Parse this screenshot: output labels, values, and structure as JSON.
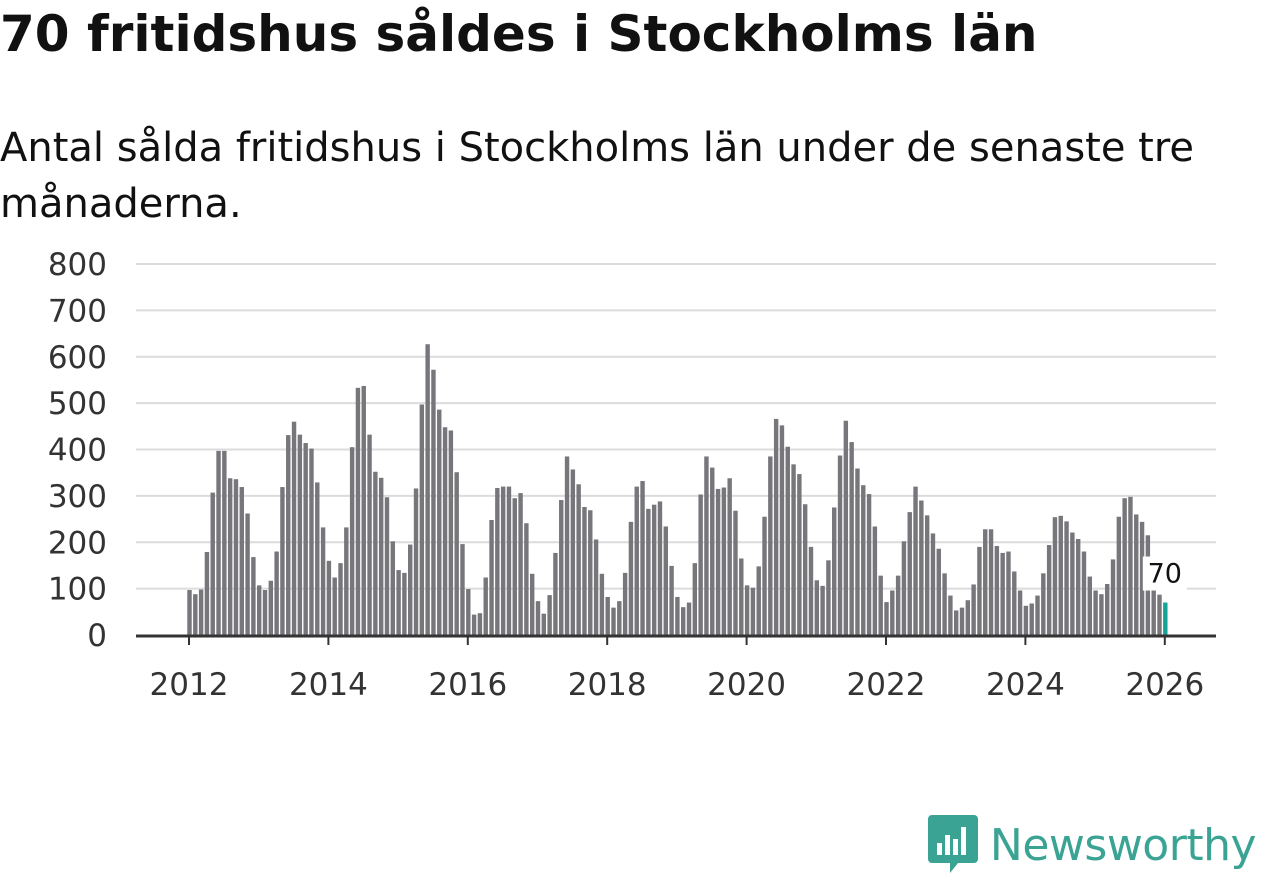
{
  "header": {
    "title": "70 fritidshus såldes i Stockholms län",
    "subtitle": "Antal sålda fritidshus i Stockholms län under de senaste tre månaderna."
  },
  "brand": {
    "name": "Newsworthy",
    "icon": "newsworthy-logo-icon",
    "color": "#3aa394"
  },
  "chart_data": {
    "type": "bar",
    "title": "",
    "xlabel": "",
    "ylabel": "",
    "x_start": "2012-01",
    "x_interval": "month",
    "ylim": [
      0,
      800
    ],
    "yticks": [
      "0",
      "100",
      "200",
      "300",
      "400",
      "500",
      "600",
      "700",
      "800"
    ],
    "xticks": [
      "2012",
      "2014",
      "2016",
      "2018",
      "2020",
      "2022",
      "2024",
      "2026"
    ],
    "grid": true,
    "legend": "none",
    "bar_color": "#77767b",
    "highlight_color": "#14a397",
    "highlight_label": "70",
    "values": [
      97,
      88,
      98,
      179,
      307,
      397,
      397,
      338,
      336,
      319,
      262,
      168,
      107,
      97,
      117,
      180,
      319,
      431,
      460,
      432,
      414,
      402,
      329,
      232,
      160,
      124,
      155,
      232,
      405,
      533,
      537,
      432,
      352,
      339,
      297,
      202,
      140,
      134,
      195,
      316,
      497,
      627,
      572,
      486,
      448,
      441,
      351,
      196,
      99,
      44,
      47,
      124,
      248,
      317,
      320,
      320,
      295,
      306,
      241,
      132,
      73,
      46,
      86,
      177,
      291,
      385,
      357,
      325,
      276,
      269,
      206,
      132,
      82,
      59,
      73,
      134,
      244,
      320,
      332,
      272,
      281,
      288,
      234,
      149,
      82,
      60,
      70,
      155,
      303,
      385,
      361,
      315,
      318,
      338,
      268,
      165,
      107,
      102,
      148,
      255,
      385,
      466,
      452,
      406,
      368,
      347,
      282,
      190,
      118,
      106,
      161,
      275,
      387,
      462,
      416,
      359,
      323,
      304,
      234,
      128,
      71,
      96,
      128,
      202,
      265,
      320,
      290,
      258,
      219,
      186,
      133,
      85,
      53,
      59,
      75,
      109,
      190,
      228,
      228,
      192,
      177,
      180,
      137,
      96,
      63,
      68,
      85,
      133,
      194,
      254,
      257,
      245,
      221,
      207,
      180,
      126,
      96,
      88,
      110,
      163,
      255,
      295,
      298,
      260,
      244,
      215,
      98,
      87,
      70
    ]
  }
}
